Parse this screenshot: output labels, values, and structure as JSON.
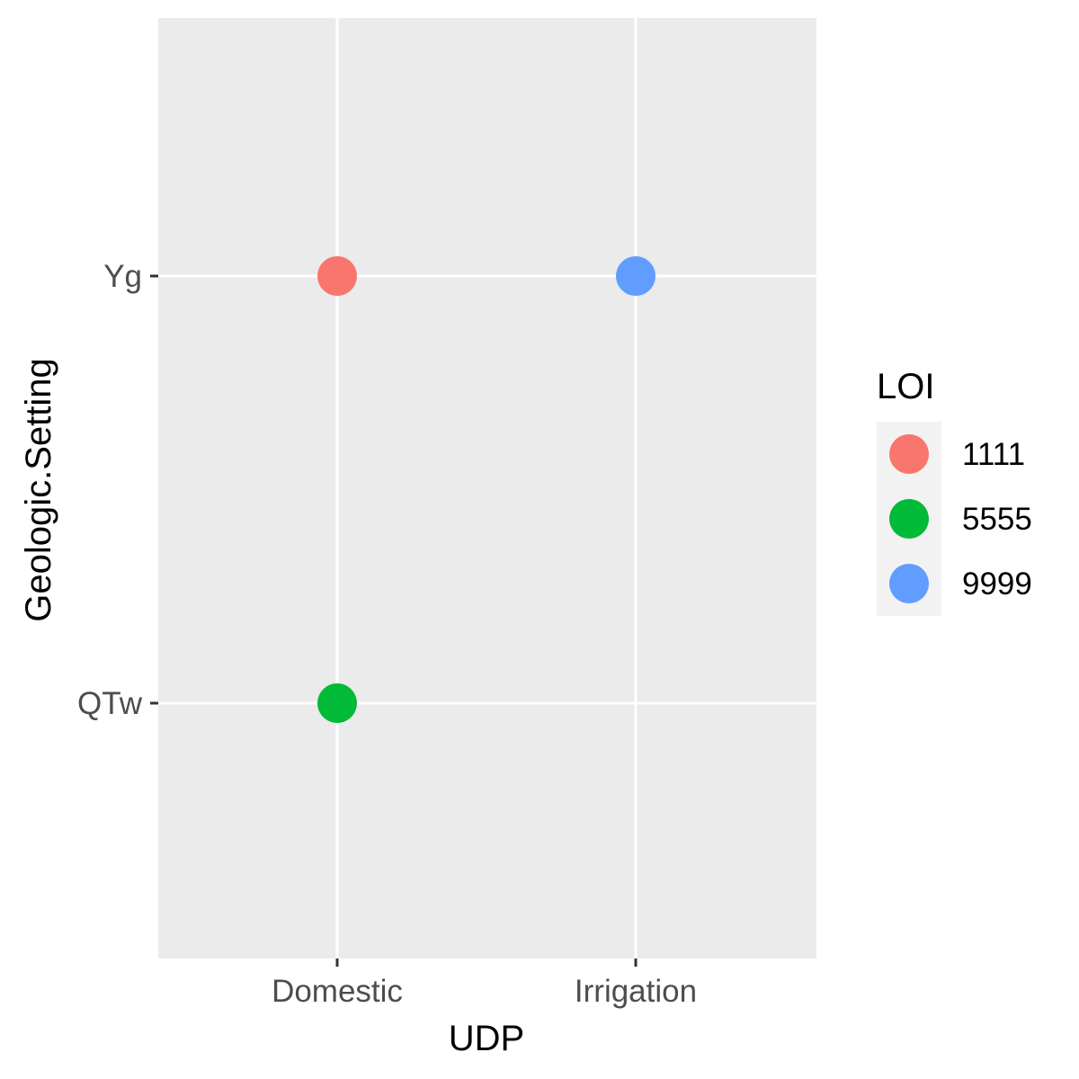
{
  "chart_data": {
    "type": "scatter",
    "x_categories": [
      "Domestic",
      "Irrigation"
    ],
    "y_categories": [
      "QTw",
      "Yg"
    ],
    "xlabel": "UDP",
    "ylabel": "Geologic.Setting",
    "points": [
      {
        "x": "Domestic",
        "y": "Yg",
        "LOI": "1111"
      },
      {
        "x": "Irrigation",
        "y": "Yg",
        "LOI": "9999"
      },
      {
        "x": "Domestic",
        "y": "QTw",
        "LOI": "5555"
      }
    ],
    "legend": {
      "title": "LOI",
      "position": "right",
      "items": [
        {
          "label": "1111",
          "color": "#F8766D"
        },
        {
          "label": "5555",
          "color": "#00BA38"
        },
        {
          "label": "9999",
          "color": "#619CFF"
        }
      ]
    },
    "grid": true,
    "panel_background": "#EBEBEB",
    "grid_color": "#FFFFFF"
  }
}
